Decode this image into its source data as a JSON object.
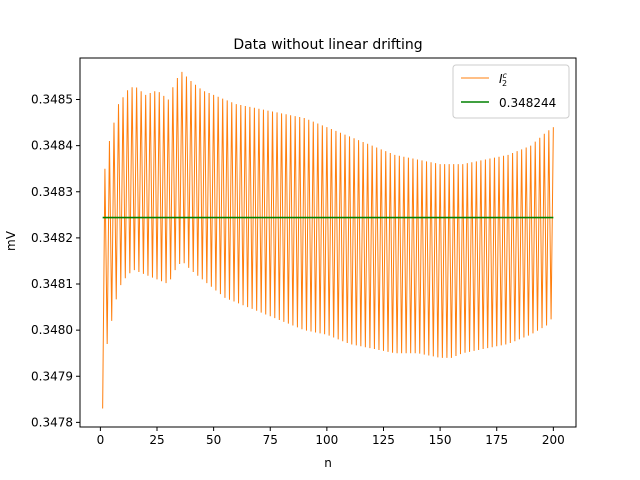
{
  "chart_data": {
    "type": "line",
    "title": "Data without linear drifting",
    "xlabel": "n",
    "ylabel": "mV",
    "xlim": [
      -9,
      210
    ],
    "ylim": [
      0.34779,
      0.34859
    ],
    "xticks": [
      0,
      25,
      50,
      75,
      100,
      125,
      150,
      175,
      200
    ],
    "xtick_labels": [
      "0",
      "25",
      "50",
      "75",
      "100",
      "125",
      "150",
      "175",
      "200"
    ],
    "yticks": [
      0.3478,
      0.3479,
      0.348,
      0.3481,
      0.3482,
      0.3483,
      0.3484,
      0.3485
    ],
    "ytick_labels": [
      "0.3478",
      "0.3479",
      "0.3480",
      "0.3481",
      "0.3482",
      "0.3483",
      "0.3484",
      "0.3485"
    ],
    "grid": false,
    "legend_position": "top-right",
    "series": [
      {
        "name": "I_2^c",
        "style": "oscillating-line",
        "color": "#ff7f0e",
        "x_range": [
          1,
          200
        ],
        "upper_envelope": {
          "x": [
            1,
            2,
            3,
            5,
            8,
            12,
            15,
            20,
            25,
            30,
            33,
            36,
            40,
            45,
            50,
            55,
            60,
            70,
            80,
            90,
            100,
            110,
            120,
            130,
            140,
            150,
            155,
            160,
            170,
            180,
            190,
            197,
            200
          ],
          "y": [
            0.34834,
            0.34835,
            0.34839,
            0.34843,
            0.34849,
            0.34852,
            0.34853,
            0.34851,
            0.34852,
            0.3485,
            0.34854,
            0.34856,
            0.34854,
            0.34852,
            0.34851,
            0.3485,
            0.34849,
            0.34848,
            0.34847,
            0.34846,
            0.34844,
            0.34842,
            0.3484,
            0.34838,
            0.34837,
            0.34836,
            0.34836,
            0.34836,
            0.34837,
            0.34838,
            0.3484,
            0.34843,
            0.34844
          ]
        },
        "lower_envelope": {
          "x": [
            1,
            2,
            3,
            5,
            8,
            12,
            15,
            20,
            25,
            30,
            33,
            36,
            40,
            45,
            50,
            55,
            60,
            70,
            80,
            90,
            100,
            110,
            120,
            130,
            140,
            150,
            155,
            160,
            170,
            180,
            190,
            197,
            200
          ],
          "y": [
            0.34783,
            0.34788,
            0.34797,
            0.34802,
            0.34809,
            0.34812,
            0.34813,
            0.34812,
            0.34811,
            0.3481,
            0.34813,
            0.34815,
            0.34813,
            0.34811,
            0.34809,
            0.34807,
            0.34806,
            0.34804,
            0.34802,
            0.348,
            0.34799,
            0.34797,
            0.34796,
            0.34795,
            0.34795,
            0.34794,
            0.34794,
            0.34795,
            0.34796,
            0.34797,
            0.34799,
            0.34801,
            0.34803
          ]
        }
      },
      {
        "name": "0.348244",
        "style": "line",
        "color": "#008000",
        "x": [
          1,
          200
        ],
        "y": [
          0.348244,
          0.348244
        ]
      }
    ],
    "legend": [
      {
        "label": "I",
        "label_sub": "2",
        "label_sup": "c"
      },
      {
        "label": "0.348244"
      }
    ]
  }
}
